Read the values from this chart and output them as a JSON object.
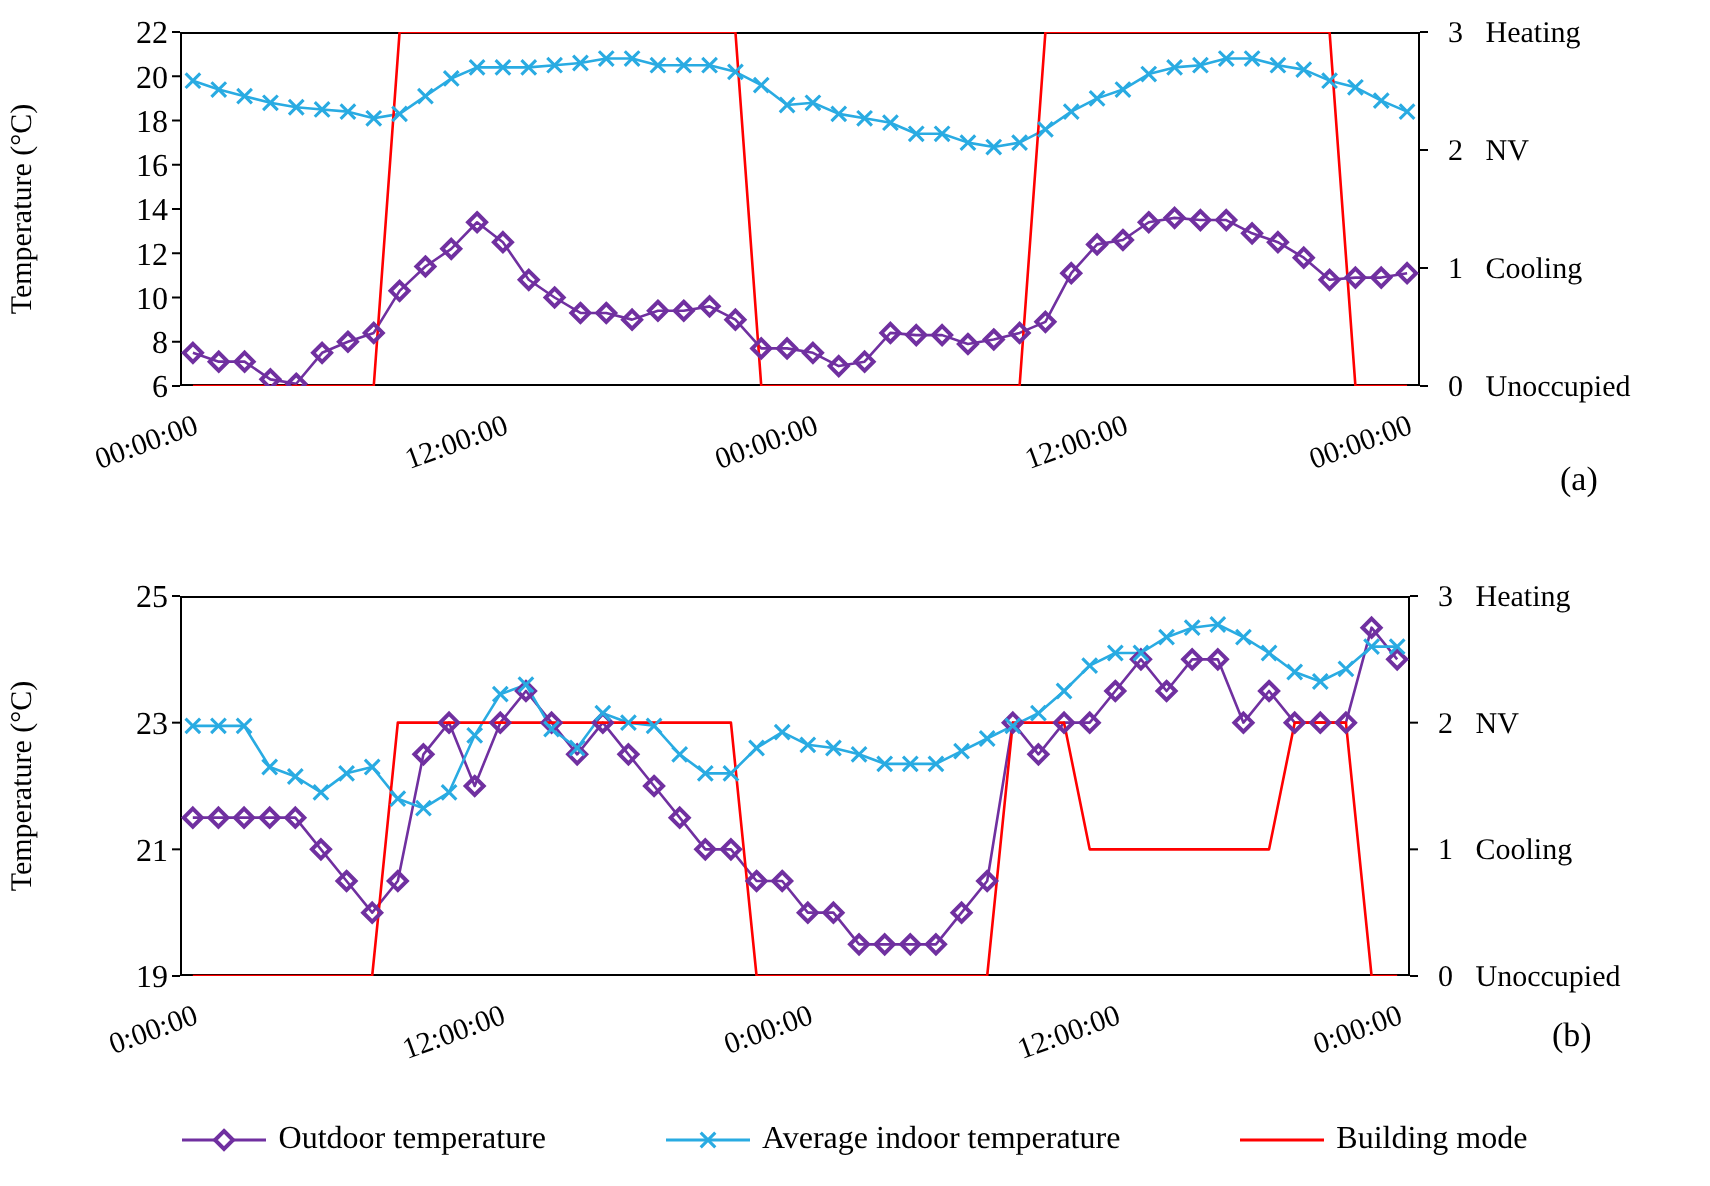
{
  "chart_data": [
    {
      "type": "line",
      "ylabel": "Temperature (°C)",
      "annotations": [
        "(a)"
      ],
      "categories": [
        "00:00:00",
        null,
        null,
        null,
        null,
        null,
        null,
        null,
        null,
        null,
        null,
        null,
        "12:00:00",
        null,
        null,
        null,
        null,
        null,
        null,
        null,
        null,
        null,
        null,
        null,
        "00:00:00",
        null,
        null,
        null,
        null,
        null,
        null,
        null,
        null,
        null,
        null,
        null,
        "12:00:00",
        null,
        null,
        null,
        null,
        null,
        null,
        null,
        null,
        null,
        null,
        "00:00:00"
      ],
      "ylim": [
        6,
        22
      ],
      "yticks": [
        6,
        8,
        10,
        12,
        14,
        16,
        18,
        20,
        22
      ],
      "y2lim": [
        0,
        3
      ],
      "y2ticks": [
        {
          "value": 0,
          "label": "0   Unoccupied"
        },
        {
          "value": 1,
          "label": "1   Cooling"
        },
        {
          "value": 2,
          "label": "2   NV"
        },
        {
          "value": 3,
          "label": "3   Heating"
        }
      ],
      "legend": false,
      "series": [
        {
          "color": "#7030a0",
          "marker": "diamond",
          "values": [
            7.5,
            7.1,
            7.1,
            6.3,
            6.1,
            7.5,
            8.0,
            8.4,
            10.3,
            11.4,
            12.2,
            13.4,
            12.5,
            10.8,
            10.0,
            9.3,
            9.3,
            9.0,
            9.4,
            9.4,
            9.6,
            9.0,
            7.7,
            7.7,
            7.5,
            6.9,
            7.1,
            8.4,
            8.3,
            8.3,
            7.9,
            8.1,
            8.4,
            8.9,
            11.1,
            12.4,
            12.6,
            13.4,
            13.6,
            13.5,
            13.5,
            12.9,
            12.5,
            11.8,
            10.8,
            10.9,
            10.9,
            11.1
          ]
        },
        {
          "color": "#29abe2",
          "marker": "cross",
          "values": [
            19.8,
            19.4,
            19.1,
            18.8,
            18.6,
            18.5,
            18.4,
            18.1,
            18.3,
            19.1,
            19.9,
            20.4,
            20.4,
            20.4,
            20.5,
            20.6,
            20.8,
            20.8,
            20.5,
            20.5,
            20.5,
            20.2,
            19.6,
            18.7,
            18.8,
            18.3,
            18.1,
            17.9,
            17.4,
            17.4,
            17.0,
            16.8,
            17.0,
            17.6,
            18.4,
            19.0,
            19.4,
            20.1,
            20.4,
            20.5,
            20.8,
            20.8,
            20.5,
            20.3,
            19.8,
            19.5,
            18.9,
            18.4
          ]
        },
        {
          "color": "#ff0000",
          "marker": "none",
          "axis": "y2",
          "values": [
            0,
            0,
            0,
            0,
            0,
            0,
            0,
            0,
            3,
            3,
            3,
            3,
            3,
            3,
            3,
            3,
            3,
            3,
            3,
            3,
            3,
            3,
            0,
            0,
            0,
            0,
            0,
            0,
            0,
            0,
            0,
            0,
            0,
            3,
            3,
            3,
            3,
            3,
            3,
            3,
            3,
            3,
            3,
            3,
            3,
            0,
            0,
            0
          ]
        }
      ]
    },
    {
      "type": "line",
      "ylabel": "Temperature (°C)",
      "annotations": [
        "(b)"
      ],
      "categories": [
        "0:00:00",
        null,
        null,
        null,
        null,
        null,
        null,
        null,
        null,
        null,
        null,
        null,
        "12:00:00",
        null,
        null,
        null,
        null,
        null,
        null,
        null,
        null,
        null,
        null,
        null,
        "0:00:00",
        null,
        null,
        null,
        null,
        null,
        null,
        null,
        null,
        null,
        null,
        null,
        "12:00:00",
        null,
        null,
        null,
        null,
        null,
        null,
        null,
        null,
        null,
        null,
        "0:00:00"
      ],
      "ylim": [
        19,
        25
      ],
      "yticks": [
        19,
        21,
        23,
        25
      ],
      "y2lim": [
        0,
        3
      ],
      "y2ticks": [
        {
          "value": 0,
          "label": "0   Unoccupied"
        },
        {
          "value": 1,
          "label": "1   Cooling"
        },
        {
          "value": 2,
          "label": "2   NV"
        },
        {
          "value": 3,
          "label": "3   Heating"
        }
      ],
      "legend": "bottom",
      "series": [
        {
          "name": "Outdoor temperature",
          "color": "#7030a0",
          "marker": "diamond",
          "values": [
            21.5,
            21.5,
            21.5,
            21.5,
            21.5,
            21.0,
            20.5,
            20.0,
            20.5,
            22.5,
            23.0,
            22.0,
            23.0,
            23.5,
            23.0,
            22.5,
            23.0,
            22.5,
            22.0,
            21.5,
            21.0,
            21.0,
            20.5,
            20.5,
            20.0,
            20.0,
            19.5,
            19.5,
            19.5,
            19.5,
            20.0,
            20.5,
            23.0,
            22.5,
            23.0,
            23.0,
            23.5,
            24.0,
            23.5,
            24.0,
            24.0,
            23.0,
            23.5,
            23.0,
            23.0,
            23.0,
            24.5,
            24.0
          ]
        },
        {
          "name": "Average indoor temperature",
          "color": "#29abe2",
          "marker": "cross",
          "values": [
            22.95,
            22.95,
            22.95,
            22.3,
            22.15,
            21.9,
            22.2,
            22.3,
            21.8,
            21.65,
            21.9,
            22.8,
            23.45,
            23.6,
            22.9,
            22.6,
            23.15,
            23.0,
            22.95,
            22.5,
            22.2,
            22.2,
            22.6,
            22.85,
            22.65,
            22.6,
            22.5,
            22.35,
            22.35,
            22.35,
            22.55,
            22.75,
            22.95,
            23.15,
            23.5,
            23.9,
            24.1,
            24.1,
            24.35,
            24.5,
            24.55,
            24.35,
            24.1,
            23.8,
            23.65,
            23.85,
            24.2,
            24.2
          ]
        },
        {
          "name": "Building mode",
          "color": "#ff0000",
          "marker": "none",
          "axis": "y2",
          "values": [
            0,
            0,
            0,
            0,
            0,
            0,
            0,
            0,
            2,
            2,
            2,
            2,
            2,
            2,
            2,
            2,
            2,
            2,
            2,
            2,
            2,
            2,
            0,
            0,
            0,
            0,
            0,
            0,
            0,
            0,
            0,
            0,
            2,
            2,
            2,
            1,
            1,
            1,
            1,
            1,
            1,
            1,
            1,
            2,
            2,
            2,
            0,
            0
          ]
        }
      ]
    }
  ]
}
